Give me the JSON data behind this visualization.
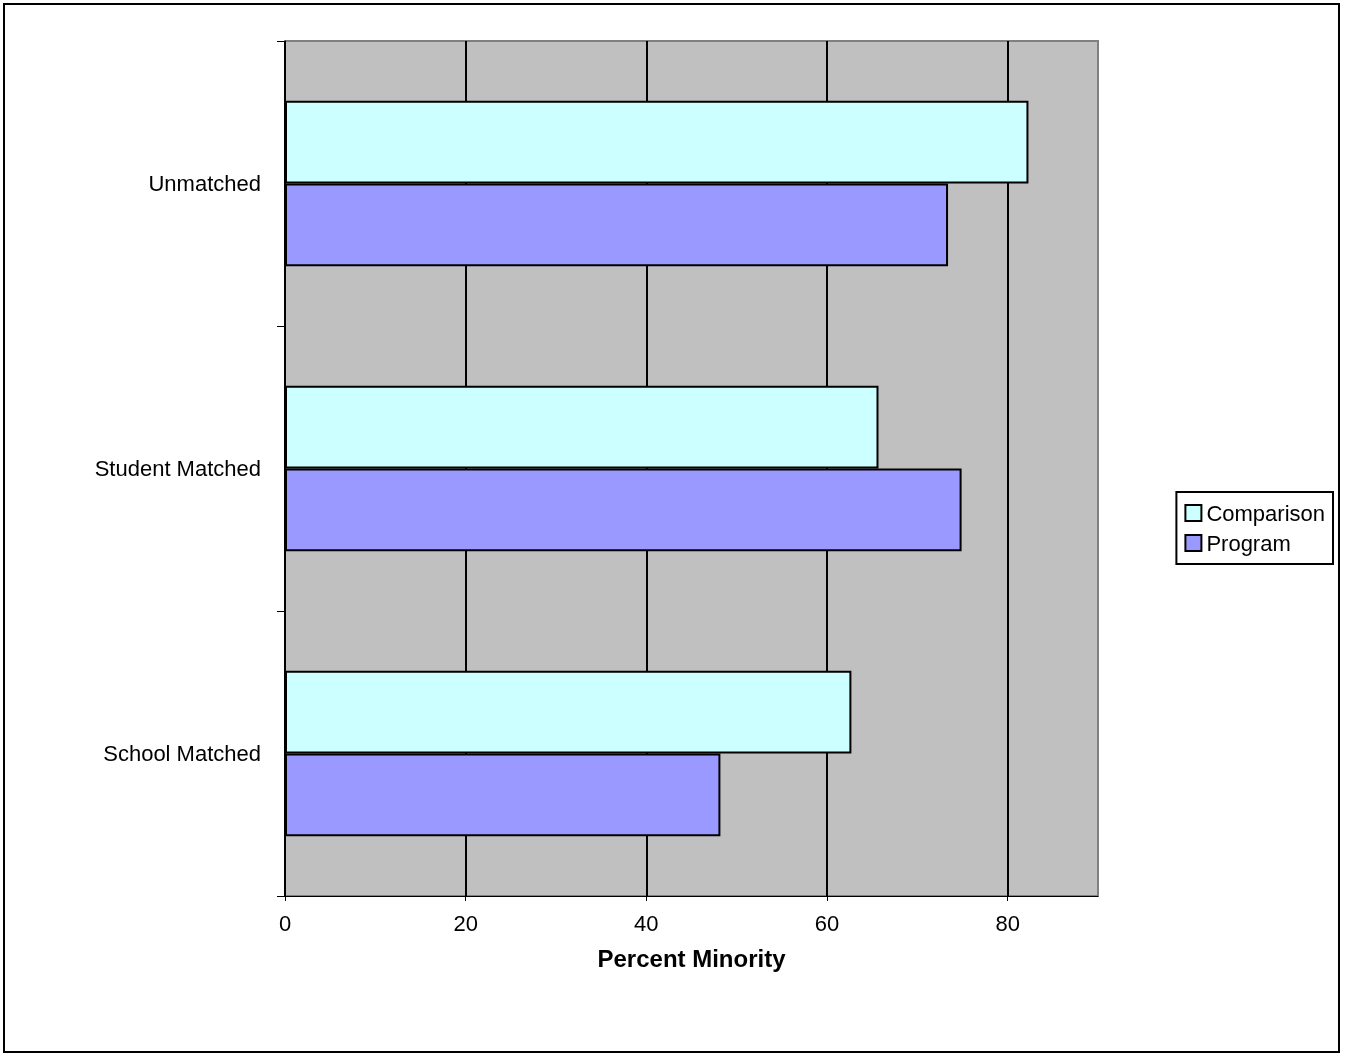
{
  "chart_data": {
    "type": "bar",
    "orientation": "horizontal",
    "categories": [
      "Unmatched",
      "Student Matched",
      "School Matched"
    ],
    "series": [
      {
        "name": "Comparison",
        "color": "#ccffff",
        "values": [
          82.3,
          65.7,
          62.7
        ]
      },
      {
        "name": "Program",
        "color": "#9999ff",
        "values": [
          73.4,
          74.9,
          48.2
        ]
      }
    ],
    "xlabel": "Percent Minority",
    "xlim": [
      0,
      90
    ],
    "xticks": [
      0,
      20,
      40,
      60,
      80
    ],
    "grid": "x",
    "legend": "right"
  }
}
